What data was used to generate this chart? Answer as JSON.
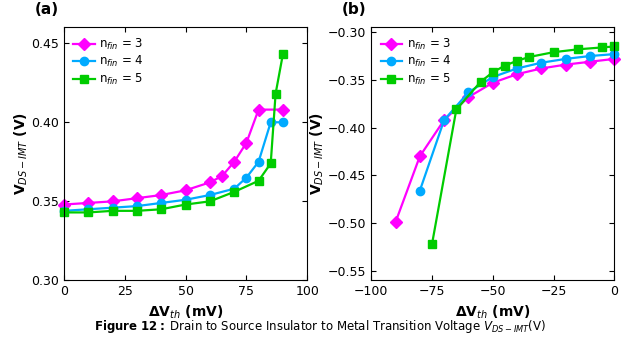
{
  "panel_a": {
    "title": "(a)",
    "xlabel": "ΔV$_{th}$ (mV)",
    "ylabel": "V$_{DS-IMT}$ (V)",
    "xlim": [
      0,
      100
    ],
    "ylim": [
      0.3,
      0.46
    ],
    "xticks": [
      0,
      25,
      50,
      75,
      100
    ],
    "yticks": [
      0.3,
      0.35,
      0.4,
      0.45
    ],
    "series": [
      {
        "label": "n$_{fin}$ = 3",
        "color": "#ff00ff",
        "marker": "D",
        "x": [
          0,
          10,
          20,
          30,
          40,
          50,
          60,
          65,
          70,
          75,
          80,
          90
        ],
        "y": [
          0.348,
          0.349,
          0.35,
          0.352,
          0.354,
          0.357,
          0.362,
          0.366,
          0.375,
          0.387,
          0.408,
          0.408
        ]
      },
      {
        "label": "n$_{fin}$ = 4",
        "color": "#00aaff",
        "marker": "o",
        "x": [
          0,
          10,
          20,
          30,
          40,
          50,
          60,
          70,
          75,
          80,
          85,
          90
        ],
        "y": [
          0.344,
          0.345,
          0.346,
          0.347,
          0.349,
          0.351,
          0.354,
          0.358,
          0.365,
          0.375,
          0.4,
          0.4
        ]
      },
      {
        "label": "n$_{fin}$ = 5",
        "color": "#00cc00",
        "marker": "s",
        "x": [
          0,
          10,
          20,
          30,
          40,
          50,
          60,
          70,
          80,
          85,
          87,
          90
        ],
        "y": [
          0.343,
          0.343,
          0.344,
          0.344,
          0.345,
          0.348,
          0.35,
          0.356,
          0.363,
          0.374,
          0.418,
          0.443
        ]
      }
    ]
  },
  "panel_b": {
    "title": "(b)",
    "xlabel": "ΔV$_{th}$ (mV)",
    "ylabel": "V$_{DS-IMT}$ (V)",
    "xlim": [
      -100,
      0
    ],
    "ylim": [
      -0.56,
      -0.295
    ],
    "xticks": [
      -100,
      -75,
      -50,
      -25,
      0
    ],
    "yticks": [
      -0.55,
      -0.5,
      -0.45,
      -0.4,
      -0.35,
      -0.3
    ],
    "series": [
      {
        "label": "n$_{fin}$ = 3",
        "color": "#ff00ff",
        "marker": "D",
        "x": [
          -90,
          -80,
          -70,
          -60,
          -50,
          -40,
          -30,
          -20,
          -10,
          0
        ],
        "y": [
          -0.499,
          -0.43,
          -0.392,
          -0.368,
          -0.353,
          -0.344,
          -0.338,
          -0.334,
          -0.331,
          -0.328
        ]
      },
      {
        "label": "n$_{fin}$ = 4",
        "color": "#00aaff",
        "marker": "o",
        "x": [
          -80,
          -70,
          -60,
          -50,
          -40,
          -30,
          -20,
          -10,
          0
        ],
        "y": [
          -0.466,
          -0.392,
          -0.363,
          -0.347,
          -0.338,
          -0.332,
          -0.328,
          -0.325,
          -0.323
        ]
      },
      {
        "label": "n$_{fin}$ = 5",
        "color": "#00cc00",
        "marker": "s",
        "x": [
          -75,
          -65,
          -55,
          -50,
          -45,
          -40,
          -35,
          -25,
          -15,
          -5,
          0
        ],
        "y": [
          -0.522,
          -0.381,
          -0.352,
          -0.342,
          -0.335,
          -0.33,
          -0.326,
          -0.321,
          -0.318,
          -0.316,
          -0.315
        ]
      }
    ]
  },
  "legend_fontsize": 8.5,
  "axis_fontsize": 10,
  "tick_fontsize": 9,
  "marker_size": 6,
  "line_width": 1.6
}
